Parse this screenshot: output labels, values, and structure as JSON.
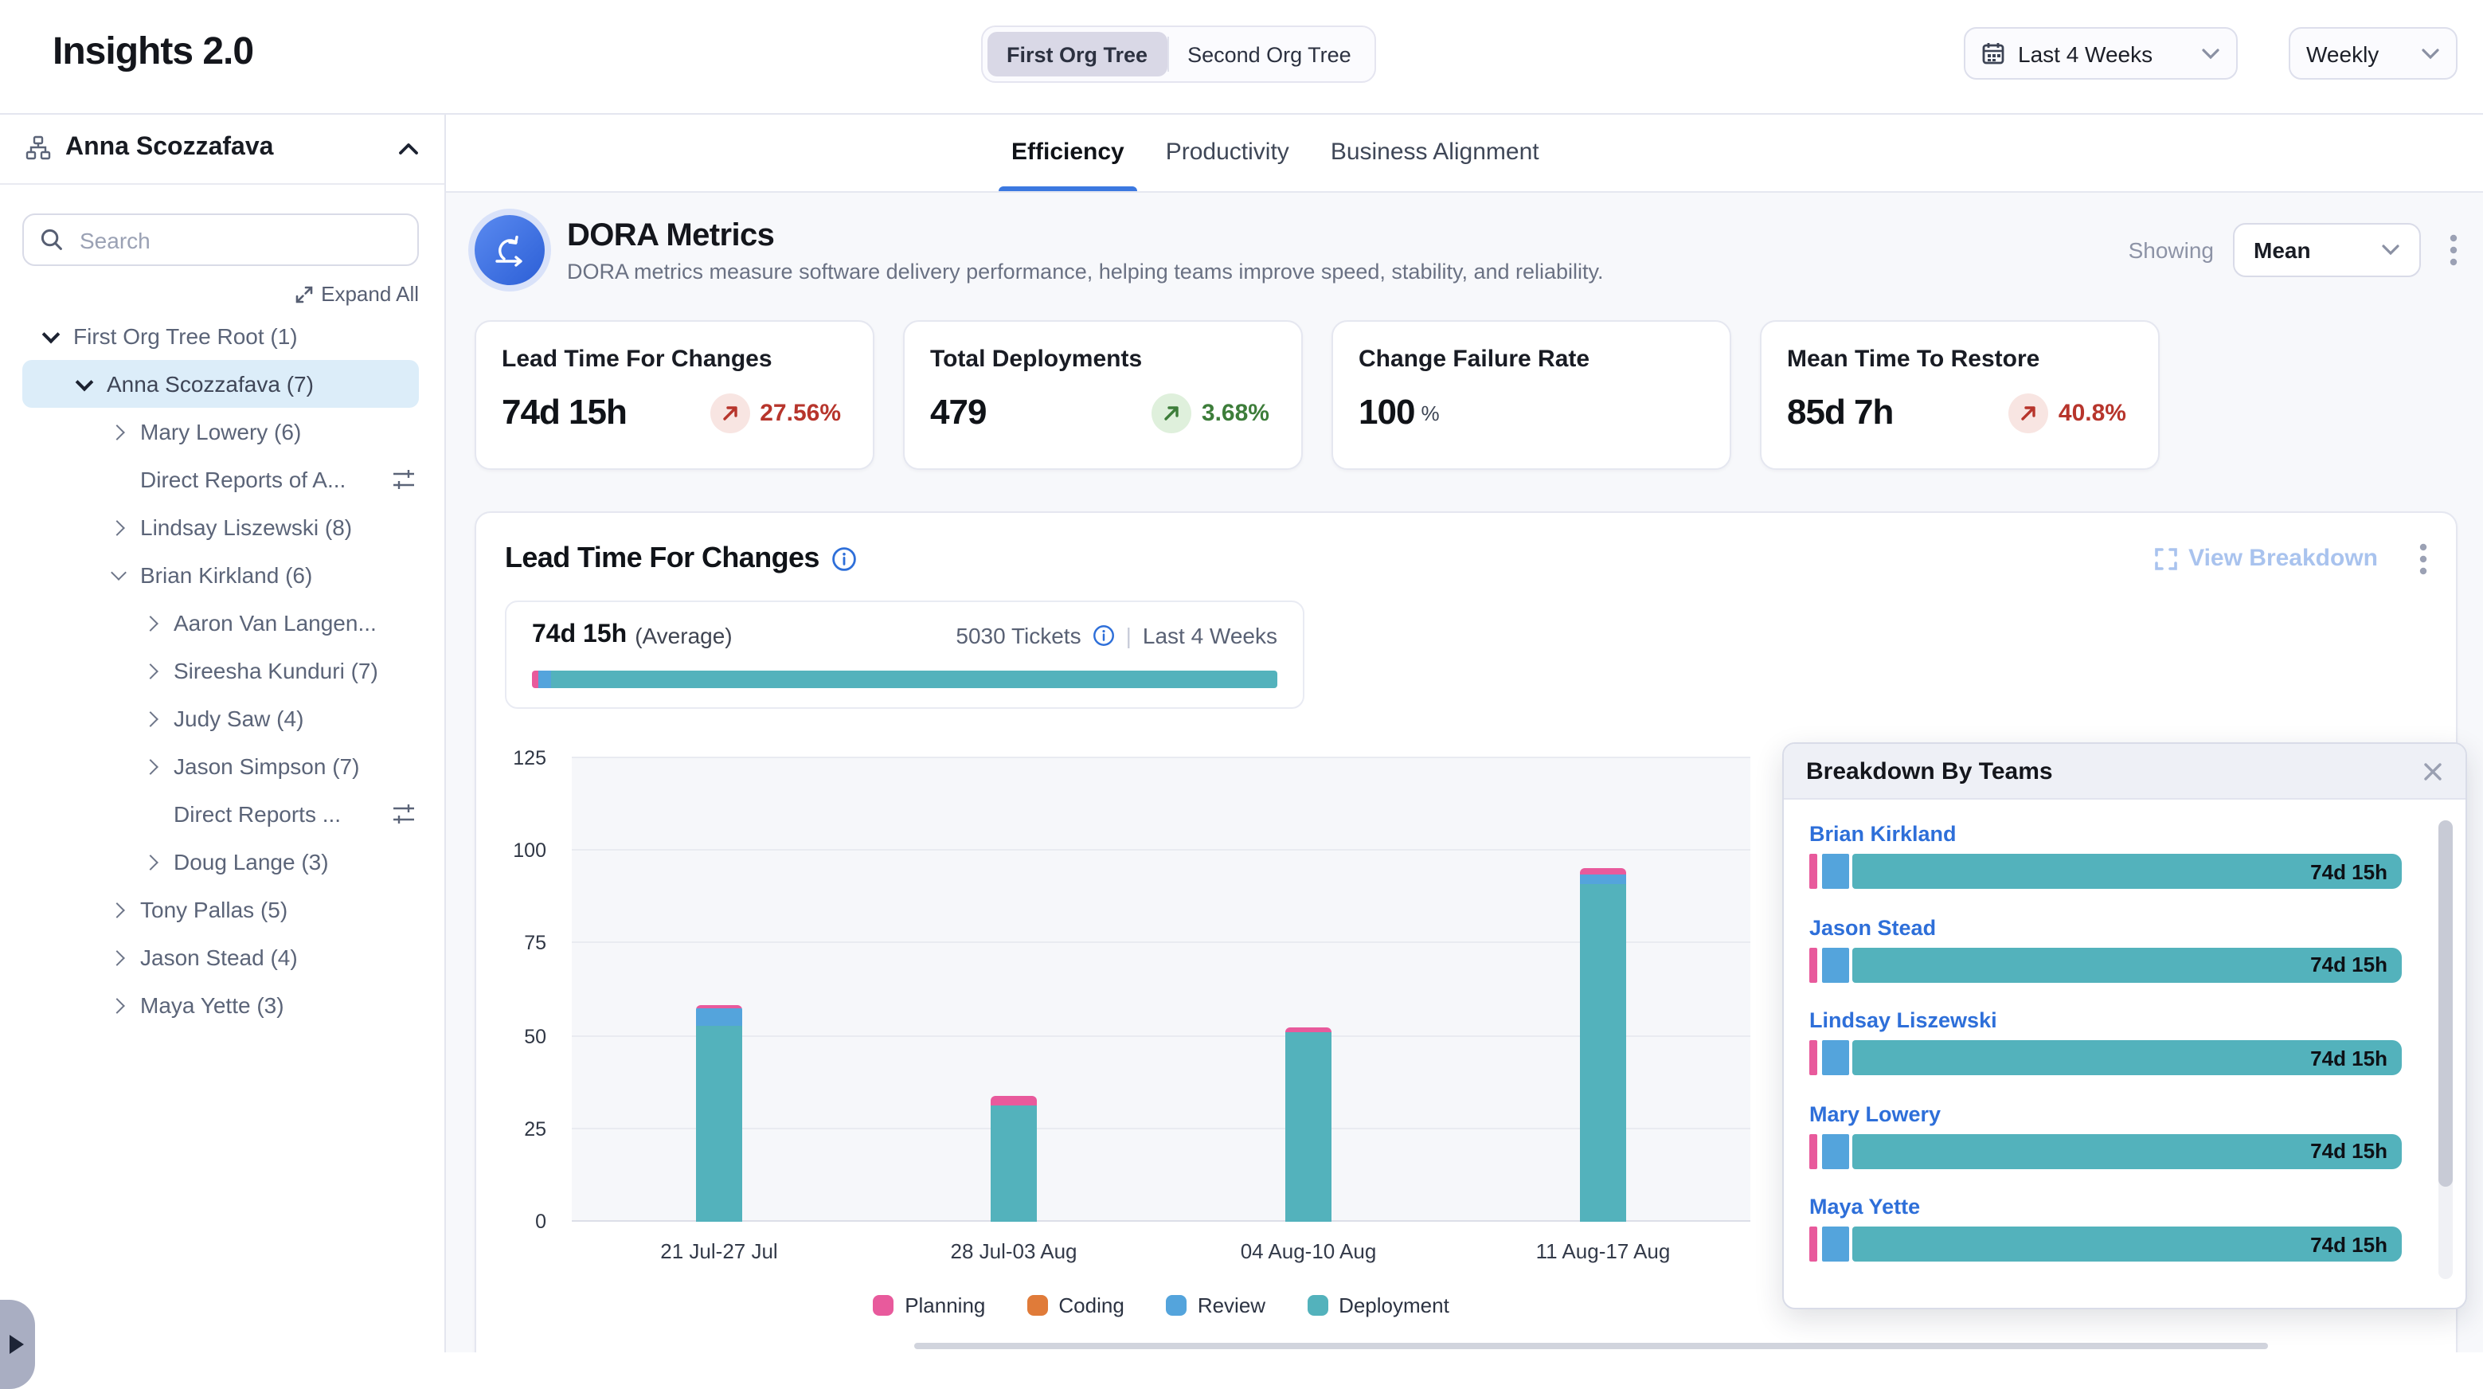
{
  "app": {
    "title": "Insights 2.0"
  },
  "header": {
    "org_tree_toggle": [
      {
        "label": "First Org Tree",
        "active": true
      },
      {
        "label": "Second Org Tree",
        "active": false
      }
    ],
    "date_range": "Last 4 Weeks",
    "granularity": "Weekly"
  },
  "sidebar": {
    "user": "Anna Scozzafava",
    "search_placeholder": "Search",
    "expand_all_label": "Expand All",
    "tree": [
      {
        "label": "First Org Tree Root (1)"
      },
      {
        "label": "Anna Scozzafava (7)"
      },
      {
        "label": "Mary Lowery (6)"
      },
      {
        "label": "Direct Reports of A..."
      },
      {
        "label": "Lindsay Liszewski (8)"
      },
      {
        "label": "Brian Kirkland (6)"
      },
      {
        "label": "Aaron Van Langen..."
      },
      {
        "label": "Sireesha Kunduri (7)"
      },
      {
        "label": "Judy Saw (4)"
      },
      {
        "label": "Jason Simpson (7)"
      },
      {
        "label": "Direct Reports ..."
      },
      {
        "label": "Doug Lange (3)"
      },
      {
        "label": "Tony Pallas (5)"
      },
      {
        "label": "Jason Stead (4)"
      },
      {
        "label": "Maya Yette (3)"
      }
    ]
  },
  "tabs": [
    {
      "label": "Efficiency",
      "active": true
    },
    {
      "label": "Productivity",
      "active": false
    },
    {
      "label": "Business Alignment",
      "active": false
    }
  ],
  "dora": {
    "title": "DORA Metrics",
    "description": "DORA metrics measure software delivery performance, helping teams improve speed, stability, and reliability.",
    "showing_label": "Showing",
    "showing_value": "Mean"
  },
  "metric_cards": [
    {
      "title": "Lead Time For Changes",
      "value": "74d 15h",
      "delta": "27.56%",
      "sentiment": "bad"
    },
    {
      "title": "Total Deployments",
      "value": "479",
      "delta": "3.68%",
      "sentiment": "good"
    },
    {
      "title": "Change Failure Rate",
      "value": "100",
      "unit": "%"
    },
    {
      "title": "Mean Time To Restore",
      "value": "85d 7h",
      "delta": "40.8%",
      "sentiment": "bad"
    }
  ],
  "lead_time_section": {
    "title": "Lead Time For Changes",
    "view_breakdown_label": "View Breakdown",
    "average_value": "74d 15h",
    "average_label": "(Average)",
    "tickets_label": "5030 Tickets",
    "range_label": "Last 4 Weeks",
    "average_bar": {
      "planning": 0.8,
      "review": 1.7,
      "deployment": 97.5
    }
  },
  "chart_data": {
    "type": "bar",
    "stacked": true,
    "title": "Lead Time For Changes",
    "categories": [
      "21 Jul-27 Jul",
      "28 Jul-03 Aug",
      "04 Aug-10 Aug",
      "11 Aug-17 Aug"
    ],
    "series": [
      {
        "name": "Planning",
        "color": "#e85a9c",
        "values": [
          0.8,
          2.5,
          0.9,
          1.7
        ]
      },
      {
        "name": "Coding",
        "color": "#e07b39",
        "values": [
          0,
          0,
          0,
          0
        ]
      },
      {
        "name": "Review",
        "color": "#54a4dc",
        "values": [
          4.5,
          0,
          0,
          2.8
        ]
      },
      {
        "name": "Deployment",
        "color": "#53b2bc",
        "values": [
          53,
          31.5,
          51.3,
          91
        ]
      }
    ],
    "ylim": [
      0,
      125
    ],
    "yticks": [
      0,
      25,
      50,
      75,
      100,
      125
    ],
    "legend_position": "bottom",
    "grid": true
  },
  "breakdown_panel": {
    "title": "Breakdown By Teams",
    "bar": {
      "planning": 1.3,
      "review": 4.5
    },
    "teams": [
      {
        "name": "Brian Kirkland",
        "value": "74d 15h"
      },
      {
        "name": "Jason Stead",
        "value": "74d 15h"
      },
      {
        "name": "Lindsay Liszewski",
        "value": "74d 15h"
      },
      {
        "name": "Mary Lowery",
        "value": "74d 15h"
      },
      {
        "name": "Maya Yette",
        "value": "74d 15h"
      }
    ]
  },
  "colors": {
    "planning": "#e85a9c",
    "coding": "#e07b39",
    "review": "#54a4dc",
    "deployment": "#53b2bc",
    "accent": "#3b78e0",
    "link": "#2e6fd9",
    "bad": "#b7352c",
    "good": "#3d7d3a"
  }
}
